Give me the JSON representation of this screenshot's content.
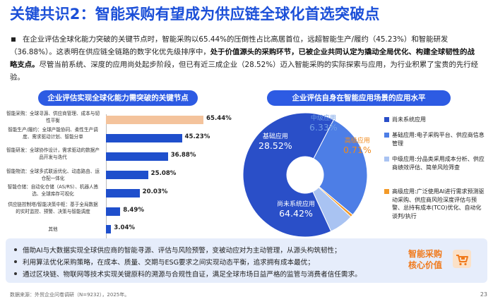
{
  "title": "关键共识2：智能采购有望成为供应链全球化首选突破点",
  "lead": {
    "part1": "在企业评估全球化能力突破的关键节点时，智能采购以65.44%的压倒性占比高居首位，远超智能生产/履约（45.23%）和智能研发（36.88%）。这表明在供应链全链路的数字化优先级排序中，",
    "bold": "处于价值源头的采购环节，已被企业共同认定为撬动全局优化、构建全球韧性的战略支点。",
    "part2": "尽管当前系统、深度的应用尚处起步阶段，但已有近三成企业（28.52%）迈入智能采购的实际探索与应用，为行业积累了宝贵的先行经验。"
  },
  "left_chart": {
    "title": "企业评估实现全球化能力需突破的关键节点"
  },
  "right_chart": {
    "title": "企业评估自身在智能应用场景的应用水平"
  },
  "chart_data": [
    {
      "type": "bar",
      "title": "企业评估实现全球化能力需突破的关键节点",
      "categories": [
        "智能采购：全球寻源、供应商管理、成本与韧性平衡",
        "智能生产/履约：全球产能协同、柔性生产调度、需求驱动计划、智能分单",
        "智能研发：全球协作设计，需求驱动的数据产品开发与迭代",
        "智能物流：全球多式联运优化、动态路由、运仓配一体化",
        "智能仓储：自动化仓储（AS/RS）、机器人拣选、全球库存可视化",
        "供应链控制塔/智能决策中枢：基于全局数据的实时监控、预警、决策与智能调度",
        "其他"
      ],
      "values": [
        65.44,
        45.23,
        36.88,
        25.08,
        20.03,
        8.49,
        3.04
      ],
      "value_labels": [
        "65.44%",
        "45.23%",
        "36.88%",
        "25.08%",
        "20.03%",
        "8.49%",
        "3.04%"
      ],
      "highlight_index": 0,
      "colors": {
        "bar": "#1f4fcc",
        "highlight": "#f4c39c"
      },
      "xlim": [
        0,
        100
      ]
    },
    {
      "type": "pie",
      "title": "企业评估自身在智能应用场景的应用水平",
      "slices": [
        {
          "name": "尚未系统应用",
          "value": 64.42,
          "label": "64.42%",
          "color": "#2a4fc8"
        },
        {
          "name": "基础应用",
          "value": 28.52,
          "label": "28.52%",
          "color": "#4d7ee6"
        },
        {
          "name": "中级应用",
          "value": 6.33,
          "label": "6.33%",
          "color": "#a9c3f2"
        },
        {
          "name": "高级应用",
          "value": 0.71,
          "label": "0.71%",
          "color": "#f39a28"
        }
      ],
      "donut": true
    }
  ],
  "legend": [
    {
      "text": "尚未系统应用",
      "color": "#2a4fc8"
    },
    {
      "text": "基础应用:电子采购平台、供应商信息管理",
      "color": "#4d7ee6"
    },
    {
      "text": "中级应用:分品类采用成本分析、供应商绩效评估、简单风险筛查",
      "color": "#a9c3f2"
    },
    {
      "text": "高级应用:广泛使用AI进行需求预测驱动采购、供应商风险深度评估与预警、总持有成本(TCO)优化、自动化谈判/执行",
      "color": "#f39a28"
    }
  ],
  "bottom": {
    "bullets": [
      "借助AI与大数据实现全球供应商的智能寻源、评估与风险预警，变被动应对为主动管理，从源头构筑韧性；",
      "利用算法优化采购策略，在成本、质量、交期与ESG要求之间实现动态平衡，追求拥有成本最优；",
      "通过区块链、物联网等技术实现关键原料的溯源与合规性自证，满足全球市场日益严格的监管与消费者信任需求。"
    ],
    "badge_line1": "智能采购",
    "badge_line2": "核心价值"
  },
  "footer": "数据来源：外贸企业问卷调研（N=9232），2025年。",
  "page_number": "23"
}
